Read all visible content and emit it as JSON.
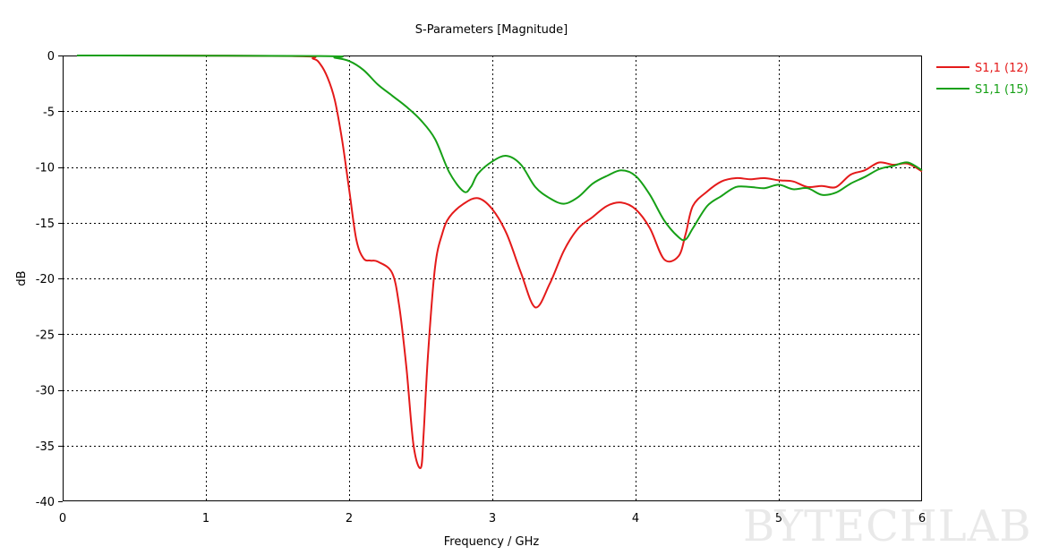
{
  "chart_data": {
    "type": "line",
    "title": "S-Parameters [Magnitude]",
    "xlabel": "Frequency / GHz",
    "ylabel": "dB",
    "xlim": [
      0,
      6
    ],
    "ylim": [
      -40,
      0
    ],
    "xticks": [
      0,
      1,
      2,
      3,
      4,
      5,
      6
    ],
    "yticks": [
      0,
      -5,
      -10,
      -15,
      -20,
      -25,
      -30,
      -35,
      -40
    ],
    "grid": true,
    "legend_position": "top-right, outside plot",
    "series": [
      {
        "name": "S1,1 (12)",
        "color": "#e41a1a",
        "x": [
          0.1,
          1.6,
          1.75,
          1.8,
          1.85,
          1.9,
          1.95,
          2.0,
          2.05,
          2.1,
          2.15,
          2.2,
          2.3,
          2.35,
          2.4,
          2.45,
          2.5,
          2.52,
          2.55,
          2.6,
          2.65,
          2.7,
          2.8,
          2.9,
          3.0,
          3.1,
          3.2,
          3.3,
          3.4,
          3.5,
          3.6,
          3.7,
          3.8,
          3.9,
          4.0,
          4.1,
          4.2,
          4.3,
          4.35,
          4.4,
          4.5,
          4.6,
          4.7,
          4.8,
          4.9,
          5.0,
          5.1,
          5.2,
          5.3,
          5.4,
          5.5,
          5.6,
          5.7,
          5.8,
          5.9,
          6.0
        ],
        "y": [
          0,
          -0.05,
          -0.3,
          -0.8,
          -2,
          -4,
          -7.5,
          -12,
          -16.5,
          -18.2,
          -18.4,
          -18.5,
          -19.5,
          -22.5,
          -28,
          -35,
          -37,
          -34,
          -27,
          -19,
          -16,
          -14.5,
          -13.3,
          -12.8,
          -13.8,
          -16,
          -19.5,
          -22.6,
          -20.5,
          -17.5,
          -15.5,
          -14.5,
          -13.5,
          -13.2,
          -13.8,
          -15.5,
          -18.3,
          -18,
          -16,
          -13.5,
          -12.2,
          -11.3,
          -11.0,
          -11.1,
          -11.0,
          -11.2,
          -11.3,
          -11.8,
          -11.7,
          -11.8,
          -10.7,
          -10.3,
          -9.6,
          -9.8,
          -9.7,
          -10.4
        ]
      },
      {
        "name": "S1,1 (15)",
        "color": "#16a016",
        "x": [
          0.1,
          1.8,
          1.9,
          2.0,
          2.1,
          2.2,
          2.3,
          2.4,
          2.5,
          2.6,
          2.7,
          2.8,
          2.85,
          2.9,
          3.0,
          3.1,
          3.2,
          3.3,
          3.4,
          3.5,
          3.6,
          3.7,
          3.8,
          3.9,
          4.0,
          4.1,
          4.2,
          4.3,
          4.35,
          4.4,
          4.5,
          4.6,
          4.7,
          4.8,
          4.9,
          5.0,
          5.1,
          5.2,
          5.3,
          5.4,
          5.5,
          5.6,
          5.7,
          5.8,
          5.9,
          6.0
        ],
        "y": [
          0,
          -0.05,
          -0.2,
          -0.5,
          -1.3,
          -2.6,
          -3.6,
          -4.6,
          -5.8,
          -7.5,
          -10.5,
          -12.2,
          -11.8,
          -10.6,
          -9.5,
          -9.0,
          -9.8,
          -11.8,
          -12.8,
          -13.3,
          -12.7,
          -11.5,
          -10.8,
          -10.3,
          -10.8,
          -12.5,
          -14.8,
          -16.3,
          -16.5,
          -15.5,
          -13.5,
          -12.6,
          -11.8,
          -11.8,
          -11.9,
          -11.6,
          -12.0,
          -11.9,
          -12.5,
          -12.3,
          -11.5,
          -10.9,
          -10.2,
          -9.9,
          -9.6,
          -10.3
        ]
      }
    ],
    "watermark": "BYTECHLAB"
  }
}
